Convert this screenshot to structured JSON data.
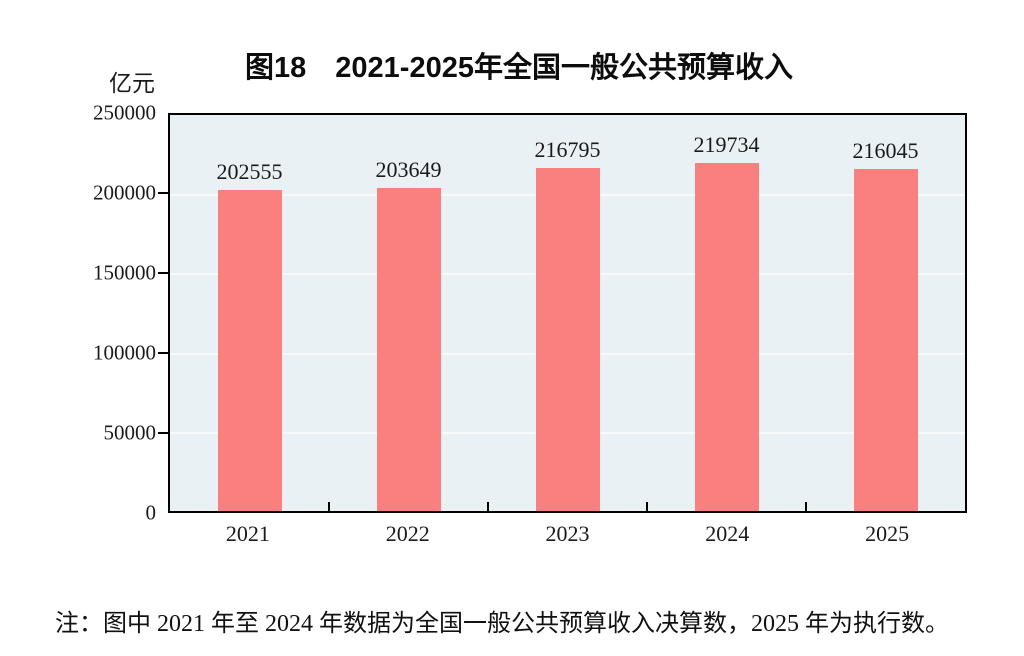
{
  "title": "图18　2021-2025年全国一般公共预算收入",
  "unit_label": "亿元",
  "note": "注：图中 2021 年至 2024 年数据为全国一般公共预算收入决算数，2025 年为执行数。",
  "colors": {
    "bar": "#fa8080",
    "plot_background": "#e9f1f4",
    "gridline": "#f7fafb",
    "axis": "#000000"
  },
  "chart_data": {
    "type": "bar",
    "categories": [
      "2021",
      "2022",
      "2023",
      "2024",
      "2025"
    ],
    "values": [
      202555,
      203649,
      216795,
      219734,
      216045
    ],
    "title": "图18　2021-2025年全国一般公共预算收入",
    "xlabel": "",
    "ylabel": "亿元",
    "ylim": [
      0,
      250000
    ],
    "yticks": [
      0,
      50000,
      100000,
      150000,
      200000,
      250000
    ],
    "grid": true,
    "legend": false,
    "bar_value_labels": true
  }
}
